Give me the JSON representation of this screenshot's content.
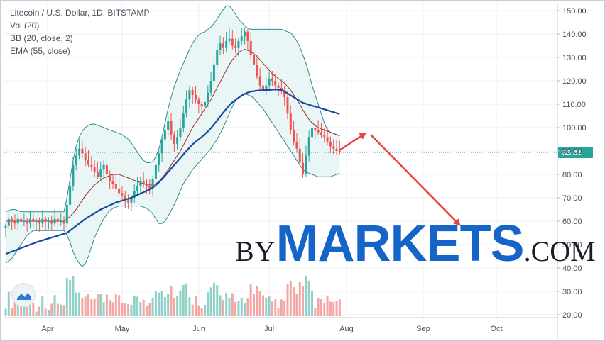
{
  "legend": {
    "symbol": "Litecoin / U.S. Dollar, 1D, BITSTAMP",
    "volume": "Vol (20)",
    "bollinger": "BB (20, close, 2)",
    "ema": "EMA (55, close)"
  },
  "watermark": {
    "part1": "BY",
    "part2": "MARKETS",
    "part3": ".COM"
  },
  "logo_icon": "tradingview-logo-icon",
  "colors": {
    "up": "#26a69a",
    "down": "#ef5350",
    "vol_up": "#8fd0c8",
    "vol_down": "#f4a6a3",
    "ema": "#1848a0",
    "bb_basis": "#9c2a2a",
    "bb_band": "#2e8b88",
    "bb_fill": "#eaf6f5",
    "price_line": "#26a69a",
    "arrow": "#e0443c",
    "grid": "#eceff3",
    "axis_text": "#4a4f5a"
  },
  "chart_data": {
    "type": "candlestick",
    "title": "Litecoin / U.S. Dollar, 1D, BITSTAMP",
    "x_ticks": [
      "Apr",
      "May",
      "Jun",
      "Jul",
      "Aug",
      "Sep",
      "Oct"
    ],
    "y_ticks": [
      "150.00",
      "140.00",
      "130.00",
      "120.00",
      "110.00",
      "100.00",
      "90.00",
      "80.00",
      "70.00",
      "60.00",
      "50.00",
      "40.00",
      "30.00",
      "20.00"
    ],
    "ylim": [
      20,
      150
    ],
    "last_price_label": "89.41",
    "last_price": 89.41,
    "closes": [
      58,
      61,
      60,
      59,
      61,
      60,
      60,
      59,
      61,
      60,
      60,
      59,
      61,
      60,
      60,
      59,
      61,
      60,
      60,
      59,
      67,
      75,
      84,
      88,
      91,
      89,
      86,
      84,
      83,
      81,
      79,
      82,
      84,
      80,
      77,
      76,
      74,
      72,
      71,
      69,
      68,
      70,
      73,
      75,
      77,
      76,
      75,
      74,
      78,
      84,
      89,
      95,
      99,
      103,
      97,
      93,
      96,
      100,
      106,
      112,
      116,
      114,
      112,
      110,
      109,
      111,
      115,
      120,
      127,
      133,
      136,
      134,
      137,
      138,
      135,
      134,
      137,
      139,
      141,
      137,
      131,
      127,
      122,
      118,
      116,
      118,
      121,
      120,
      118,
      117,
      116,
      113,
      106,
      99,
      94,
      91,
      85,
      80,
      88,
      96,
      100,
      99,
      98,
      97,
      96,
      94,
      92,
      91,
      90,
      89.41
    ],
    "ema55": [
      46.0,
      46.5,
      47.0,
      47.5,
      48.0,
      48.5,
      49.0,
      49.5,
      50.0,
      50.5,
      51.0,
      51.4,
      51.8,
      52.2,
      52.6,
      53.0,
      53.4,
      53.8,
      54.2,
      54.6,
      55.0,
      56.0,
      57.0,
      58.0,
      59.0,
      60.0,
      61.0,
      61.8,
      62.6,
      63.4,
      64.2,
      65.0,
      65.6,
      66.2,
      66.8,
      67.4,
      68.0,
      68.4,
      68.8,
      69.2,
      69.6,
      70.0,
      70.6,
      71.2,
      71.8,
      72.4,
      73.0,
      73.6,
      74.4,
      75.4,
      76.6,
      78.0,
      79.4,
      81.0,
      82.5,
      84.0,
      85.5,
      87.0,
      88.5,
      90.0,
      91.5,
      92.8,
      94.0,
      95.0,
      96.0,
      97.2,
      98.4,
      99.8,
      101.4,
      103.0,
      104.8,
      106.4,
      108.0,
      109.6,
      110.8,
      111.8,
      112.8,
      113.6,
      114.4,
      115.0,
      115.4,
      115.6,
      115.8,
      115.9,
      116.0,
      116.0,
      116.1,
      116.2,
      116.3,
      116.2,
      116.0,
      115.4,
      114.6,
      113.8,
      113.0,
      112.2,
      111.4,
      110.6,
      110.2,
      109.8,
      109.4,
      109.0,
      108.6,
      108.2,
      107.8,
      107.4,
      107.0,
      106.6,
      106.2,
      105.8
    ],
    "bb_basis": [
      60.0,
      60.0,
      60.0,
      60.0,
      60.0,
      60.0,
      60.0,
      60.0,
      60.0,
      60.0,
      60.0,
      60.0,
      60.0,
      60.0,
      60.0,
      60.0,
      60.0,
      60.0,
      60.0,
      60.0,
      61.0,
      62.0,
      63.5,
      65.0,
      67.0,
      69.0,
      71.0,
      72.5,
      74.0,
      75.5,
      76.5,
      77.5,
      78.5,
      79.0,
      79.5,
      80.0,
      80.0,
      80.0,
      79.5,
      79.0,
      78.5,
      78.0,
      77.5,
      77.0,
      76.5,
      76.0,
      75.5,
      75.5,
      75.5,
      76.0,
      77.0,
      78.5,
      80.0,
      82.0,
      84.0,
      86.0,
      88.0,
      90.0,
      92.5,
      95.0,
      97.5,
      100.0,
      102.0,
      104.0,
      106.0,
      108.0,
      110.0,
      112.0,
      114.5,
      117.0,
      119.5,
      122.0,
      124.5,
      127.0,
      129.0,
      130.5,
      132.0,
      133.0,
      133.5,
      133.0,
      132.5,
      131.5,
      130.5,
      129.0,
      127.5,
      126.0,
      124.5,
      123.0,
      122.0,
      121.0,
      120.0,
      119.0,
      117.5,
      116.0,
      114.0,
      112.0,
      110.0,
      107.5,
      105.5,
      103.5,
      102.0,
      101.0,
      100.0,
      99.5,
      99.0,
      98.5,
      98.0,
      97.5,
      97.0,
      96.5
    ],
    "bb_upper": [
      64.0,
      64.5,
      65.0,
      65.0,
      64.5,
      64.0,
      64.0,
      64.0,
      64.0,
      64.0,
      64.0,
      64.0,
      64.0,
      64.0,
      64.0,
      64.0,
      64.0,
      64.0,
      64.0,
      64.0,
      70.0,
      78.0,
      86.0,
      92.0,
      96.0,
      98.5,
      100.0,
      101.0,
      101.5,
      101.5,
      101.0,
      100.5,
      100.0,
      99.5,
      99.0,
      98.5,
      98.0,
      97.5,
      97.0,
      96.0,
      95.0,
      93.5,
      91.5,
      89.5,
      87.5,
      86.0,
      85.0,
      85.0,
      85.5,
      87.5,
      91.0,
      96.0,
      102.0,
      108.0,
      113.0,
      117.5,
      121.0,
      124.5,
      127.5,
      130.5,
      133.5,
      136.0,
      138.0,
      139.5,
      140.5,
      141.0,
      142.0,
      143.0,
      144.5,
      146.5,
      148.5,
      150.5,
      152.0,
      152.0,
      150.5,
      148.5,
      146.5,
      145.0,
      143.5,
      142.5,
      142.0,
      142.0,
      142.0,
      142.0,
      142.0,
      142.0,
      142.0,
      142.0,
      142.0,
      142.0,
      142.0,
      141.5,
      141.0,
      140.5,
      139.0,
      137.0,
      134.5,
      131.0,
      127.5,
      123.0,
      118.0,
      114.0,
      110.0,
      106.0,
      102.0,
      99.0,
      98.0,
      97.5,
      97.0,
      96.5
    ],
    "bb_lower": [
      42.0,
      43.0,
      44.0,
      46.0,
      48.0,
      50.0,
      52.0,
      54.0,
      55.0,
      56.0,
      56.0,
      56.0,
      56.0,
      56.0,
      56.0,
      56.0,
      56.0,
      56.0,
      56.0,
      56.0,
      54.0,
      51.0,
      47.0,
      44.0,
      42.0,
      40.5,
      42.0,
      45.0,
      49.0,
      53.0,
      56.0,
      58.5,
      61.0,
      63.0,
      64.5,
      65.5,
      66.0,
      66.5,
      66.5,
      66.5,
      66.5,
      66.5,
      66.5,
      66.5,
      66.5,
      66.0,
      65.5,
      64.5,
      63.0,
      61.0,
      59.0,
      59.0,
      60.0,
      62.0,
      64.5,
      67.0,
      70.0,
      73.0,
      76.0,
      78.0,
      80.0,
      82.0,
      83.5,
      85.0,
      86.5,
      88.0,
      89.5,
      91.0,
      93.0,
      95.0,
      97.5,
      100.0,
      103.0,
      106.0,
      109.0,
      111.5,
      113.0,
      114.0,
      114.5,
      114.0,
      113.5,
      112.5,
      111.0,
      109.5,
      108.0,
      106.0,
      104.0,
      102.0,
      100.0,
      98.0,
      96.0,
      94.0,
      92.0,
      90.0,
      88.0,
      86.0,
      84.0,
      82.0,
      81.0,
      80.5,
      80.0,
      79.5,
      79.0,
      79.0,
      79.0,
      79.0,
      79.0,
      79.5,
      80.0,
      80.5
    ]
  }
}
